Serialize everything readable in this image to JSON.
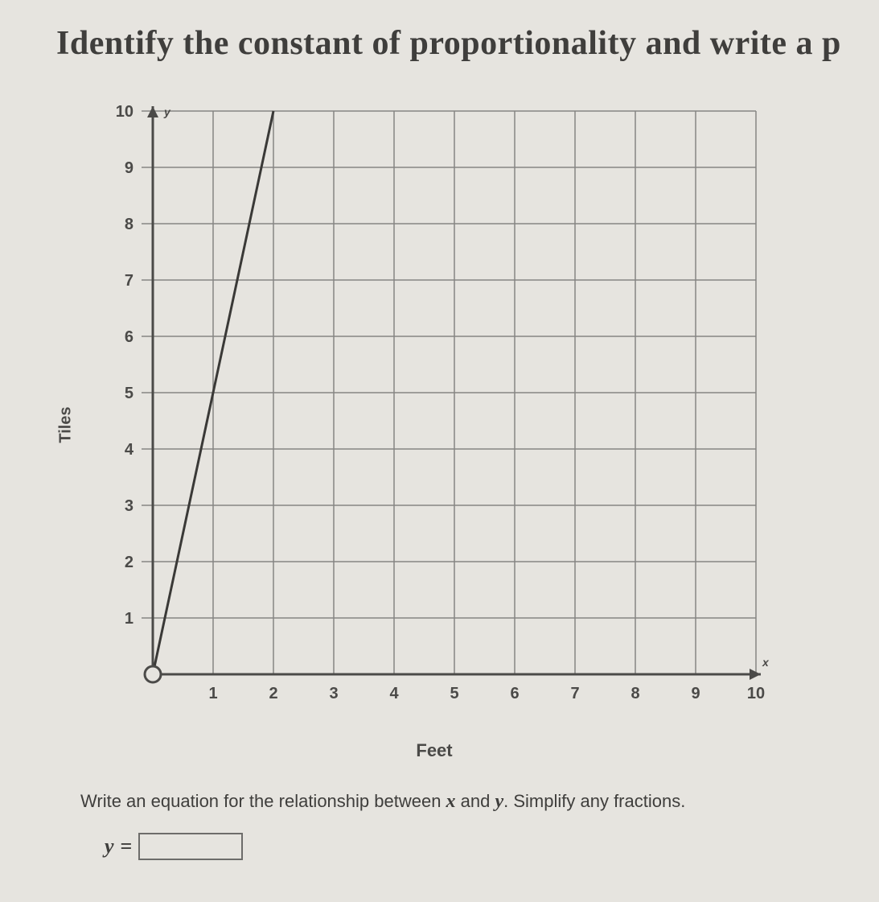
{
  "heading": "Identify the constant of proportionality and write a p",
  "chart": {
    "type": "line",
    "background_color": "#e6e4df",
    "grid_color": "#868583",
    "axis_color": "#4b4a48",
    "line_color": "#3a3937",
    "tick_color": "#4b4a48",
    "label_color": "#4b4a48",
    "x_label": "Feet",
    "y_label": "Tiles",
    "x_ticks": [
      1,
      2,
      3,
      4,
      5,
      6,
      7,
      8,
      9,
      10
    ],
    "y_ticks": [
      1,
      2,
      3,
      4,
      5,
      6,
      7,
      8,
      9,
      10
    ],
    "xlim": [
      0,
      10
    ],
    "ylim": [
      0,
      10
    ],
    "line_points": [
      [
        0,
        0
      ],
      [
        2,
        10
      ]
    ],
    "line_width": 3,
    "grid_width": 1.5,
    "axis_width": 3,
    "y_axis_marker": "y",
    "x_axis_marker": "x",
    "tick_fontsize": 20,
    "label_fontsize": 22,
    "origin_open_circle": true
  },
  "instruction": {
    "prefix": "Write an equation for the relationship between ",
    "var1": "x",
    "mid": " and ",
    "var2": "y",
    "suffix": ". Simplify any fractions."
  },
  "answer": {
    "lhs": "y",
    "eq": "=",
    "value": ""
  },
  "colors": {
    "page_bg": "#e6e4df",
    "text": "#3f3e3c",
    "box_border": "#6d6c6a"
  }
}
